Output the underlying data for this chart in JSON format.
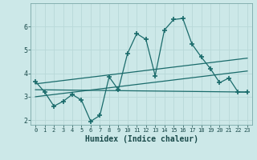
{
  "xlabel": "Humidex (Indice chaleur)",
  "bg_color": "#cce8e8",
  "line_color": "#1a6b6b",
  "grid_color": "#b0d4d4",
  "xlim": [
    -0.5,
    23.5
  ],
  "ylim": [
    1.8,
    7.0
  ],
  "xticks": [
    0,
    1,
    2,
    3,
    4,
    5,
    6,
    7,
    8,
    9,
    10,
    11,
    12,
    13,
    14,
    15,
    16,
    17,
    18,
    19,
    20,
    21,
    22,
    23
  ],
  "yticks": [
    2,
    3,
    4,
    5,
    6
  ],
  "main_x": [
    0,
    1,
    2,
    3,
    4,
    5,
    6,
    7,
    8,
    9,
    10,
    11,
    12,
    13,
    14,
    15,
    16,
    17,
    18,
    19,
    20,
    21,
    22,
    23
  ],
  "main_y": [
    3.65,
    3.2,
    2.6,
    2.8,
    3.1,
    2.85,
    1.95,
    2.2,
    3.85,
    3.3,
    4.85,
    5.7,
    5.45,
    3.9,
    5.85,
    6.3,
    6.35,
    5.25,
    4.7,
    4.2,
    3.6,
    3.8,
    3.2,
    3.2
  ],
  "trend1_x": [
    0,
    23
  ],
  "trend1_y": [
    3.55,
    4.65
  ],
  "trend2_x": [
    0,
    23
  ],
  "trend2_y": [
    3.0,
    4.1
  ],
  "trend3_x": [
    0,
    23
  ],
  "trend3_y": [
    3.3,
    3.2
  ]
}
